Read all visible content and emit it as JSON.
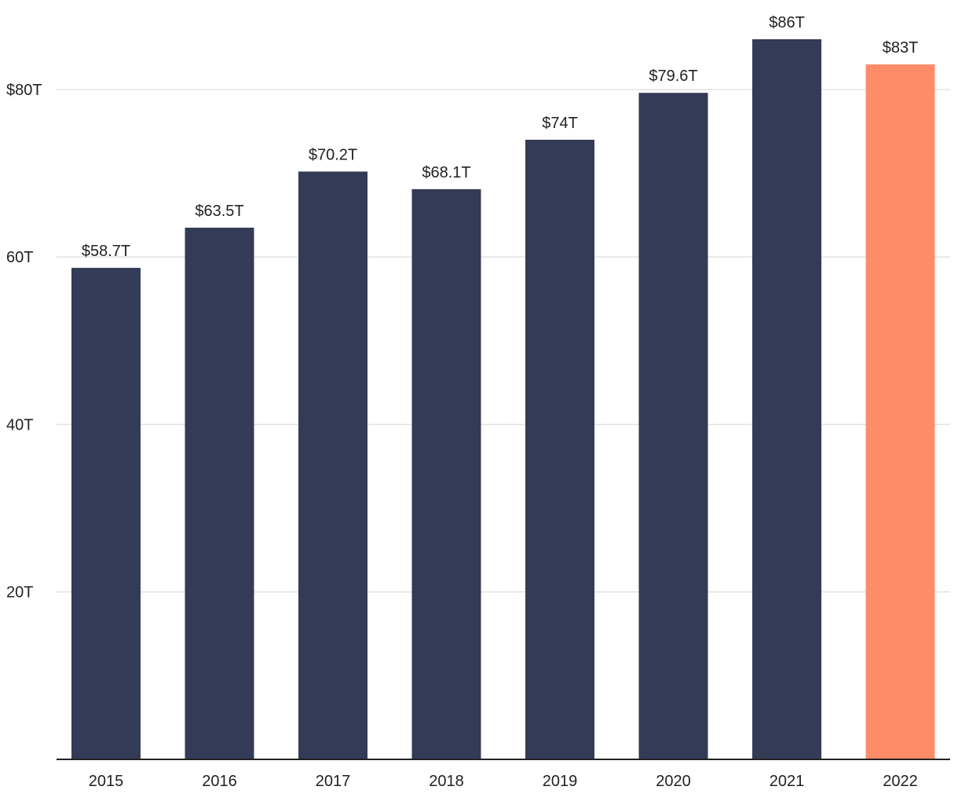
{
  "chart_data": {
    "type": "bar",
    "title": "",
    "xlabel": "",
    "ylabel": "",
    "categories": [
      "2015",
      "2016",
      "2017",
      "2018",
      "2019",
      "2020",
      "2021",
      "2022"
    ],
    "values": [
      58.7,
      63.5,
      70.2,
      68.1,
      74,
      79.6,
      86,
      83
    ],
    "value_labels": [
      "$58.7T",
      "$63.5T",
      "$70.2T",
      "$68.1T",
      "$74T",
      "$79.6T",
      "$86T",
      "$83T"
    ],
    "ylim": [
      0,
      86
    ],
    "yticks": [
      {
        "value": 20,
        "label": "20T"
      },
      {
        "value": 40,
        "label": "40T"
      },
      {
        "value": 60,
        "label": "60T"
      },
      {
        "value": 80,
        "label": "$80T"
      }
    ],
    "grid": true,
    "highlight_index": 7,
    "colors": {
      "bar": "#343b56",
      "highlight": "#ff8c69",
      "grid": "#e2e2e2",
      "axis": "#222222",
      "text": "#222222"
    }
  }
}
